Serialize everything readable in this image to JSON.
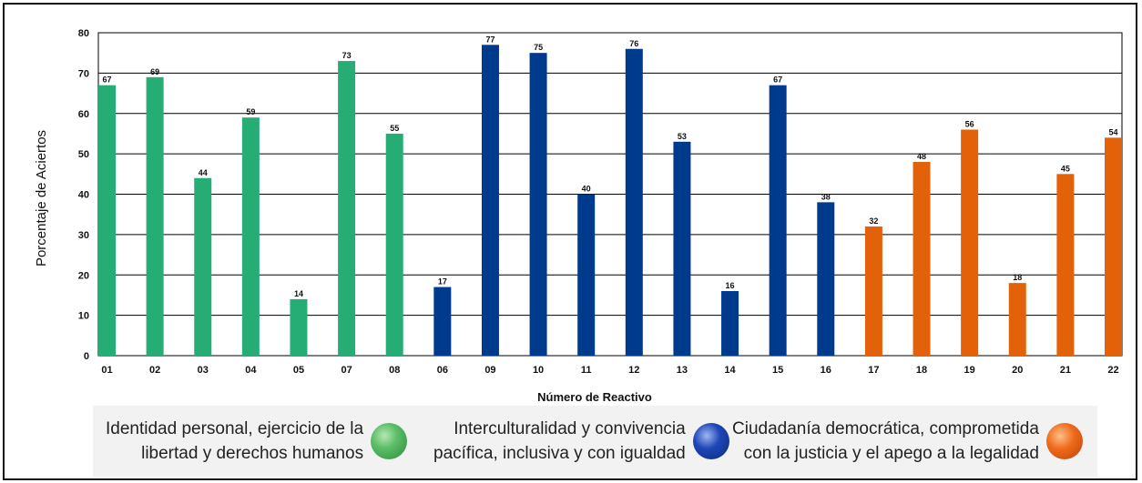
{
  "chart_data": {
    "type": "bar",
    "title": "",
    "xlabel": "Número de Reactivo",
    "ylabel": "Porcentaje de Aciertos",
    "ylim": [
      0,
      80
    ],
    "yticks": [
      0,
      10,
      20,
      30,
      40,
      50,
      60,
      70,
      80
    ],
    "grid": true,
    "categories": [
      "01",
      "02",
      "03",
      "04",
      "05",
      "07",
      "08",
      "06",
      "09",
      "10",
      "11",
      "12",
      "13",
      "14",
      "15",
      "16",
      "17",
      "18",
      "19",
      "20",
      "21",
      "22"
    ],
    "values": [
      67,
      69,
      44,
      59,
      14,
      73,
      55,
      17,
      77,
      75,
      40,
      76,
      53,
      16,
      67,
      38,
      32,
      48,
      56,
      18,
      45,
      54
    ],
    "groups": [
      0,
      0,
      0,
      0,
      0,
      0,
      0,
      1,
      1,
      1,
      1,
      1,
      1,
      1,
      1,
      1,
      2,
      2,
      2,
      2,
      2,
      2
    ],
    "group_colors": [
      "#26ad76",
      "#003a8c",
      "#e36209"
    ]
  },
  "legend": [
    {
      "text": "Identidad personal, ejercicio de la\nlibertad y derechos humanos",
      "color": "#4cb85a"
    },
    {
      "text": "Interculturalidad y convivencia\npacífica, inclusiva y con igualdad",
      "color": "#1a3fae"
    },
    {
      "text": "Ciudadanía democrática, comprometida\ncon la justicia y el apego a la legalidad",
      "color": "#e2641a"
    }
  ]
}
